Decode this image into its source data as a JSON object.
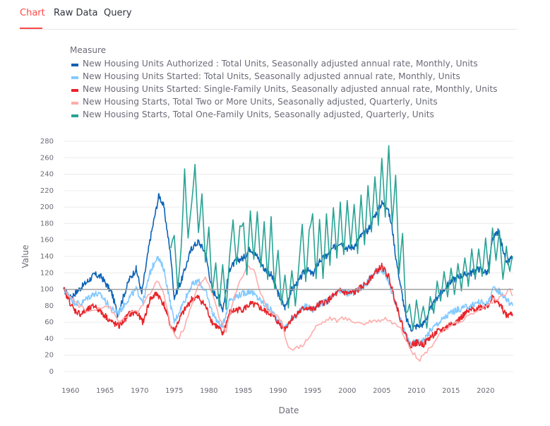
{
  "tabs": [
    {
      "label": "Chart",
      "active": true
    },
    {
      "label": "Raw Data",
      "active": false
    },
    {
      "label": "Query",
      "active": false
    }
  ],
  "colors": {
    "accent": "#ff4b4b",
    "reference_line": "#a0a0a0",
    "grid": "#ececec"
  },
  "chart_data": {
    "type": "line",
    "xlabel": "Date",
    "ylabel": "Value",
    "xlim": [
      1959,
      2024
    ],
    "ylim": [
      0,
      280
    ],
    "xticks": [
      1960,
      1965,
      1970,
      1975,
      1980,
      1985,
      1990,
      1995,
      2000,
      2005,
      2010,
      2015,
      2020
    ],
    "yticks": [
      0,
      20,
      40,
      60,
      80,
      100,
      120,
      140,
      160,
      180,
      200,
      220,
      240,
      260,
      280
    ],
    "reference_line": 100,
    "legend": {
      "title": "Measure",
      "placement": "top-left"
    },
    "series": [
      {
        "name": "New Housing Units Authorized : Total Units, Seasonally adjusted annual rate, Monthly, Units",
        "color": "#0b62b8",
        "frequency": "monthly",
        "x": [
          1959.0,
          1960.0,
          1961.0,
          1962.5,
          1963.5,
          1964.5,
          1966.0,
          1966.8,
          1968.5,
          1969.5,
          1970.3,
          1971.5,
          1972.8,
          1973.5,
          1974.5,
          1975.0,
          1976.0,
          1977.5,
          1978.5,
          1979.5,
          1980.5,
          1981.5,
          1982.0,
          1983.0,
          1984.0,
          1985.0,
          1986.0,
          1987.0,
          1988.0,
          1989.0,
          1990.0,
          1991.0,
          1992.0,
          1993.0,
          1994.0,
          1995.0,
          1996.0,
          1997.0,
          1998.0,
          1999.0,
          2000.0,
          2001.0,
          2002.0,
          2003.0,
          2004.0,
          2005.0,
          2005.8,
          2006.5,
          2007.0,
          2008.0,
          2008.5,
          2009.2,
          2010.0,
          2011.0,
          2012.0,
          2013.0,
          2014.0,
          2015.0,
          2016.0,
          2017.0,
          2018.0,
          2019.0,
          2020.3,
          2021.0,
          2021.8,
          2022.5,
          2023.0,
          2023.9
        ],
        "y": [
          100,
          90,
          98,
          110,
          118,
          115,
          95,
          70,
          112,
          125,
          95,
          160,
          215,
          200,
          140,
          90,
          110,
          150,
          158,
          145,
          98,
          90,
          75,
          125,
          135,
          138,
          150,
          140,
          125,
          118,
          95,
          78,
          100,
          110,
          125,
          118,
          135,
          140,
          150,
          158,
          150,
          152,
          165,
          172,
          190,
          205,
          200,
          175,
          140,
          90,
          65,
          52,
          55,
          58,
          75,
          90,
          100,
          110,
          115,
          118,
          120,
          125,
          120,
          160,
          170,
          150,
          130,
          140
        ]
      },
      {
        "name": "New Housing Units Started: Total Units, Seasonally adjusted annual rate, Monthly, Units",
        "color": "#83c9ff",
        "frequency": "monthly",
        "x": [
          1959.0,
          1960.5,
          1961.5,
          1962.5,
          1963.5,
          1964.5,
          1966.0,
          1967.0,
          1968.5,
          1969.5,
          1970.5,
          1971.5,
          1972.5,
          1973.5,
          1974.5,
          1975.0,
          1976.0,
          1977.5,
          1978.5,
          1979.5,
          1980.5,
          1981.5,
          1982.0,
          1983.0,
          1984.0,
          1985.0,
          1986.0,
          1987.0,
          1988.0,
          1989.0,
          1990.0,
          1991.0,
          1992.0,
          1993.0,
          1994.0,
          1995.0,
          1996.0,
          1997.0,
          1998.0,
          1999.0,
          2000.0,
          2001.0,
          2002.0,
          2003.0,
          2004.0,
          2005.0,
          2006.0,
          2007.0,
          2008.0,
          2009.0,
          2010.0,
          2011.0,
          2012.0,
          2013.0,
          2014.0,
          2015.0,
          2016.0,
          2017.0,
          2018.0,
          2019.0,
          2020.3,
          2021.0,
          2022.0,
          2023.0,
          2023.9
        ],
        "y": [
          100,
          85,
          82,
          90,
          95,
          92,
          75,
          72,
          90,
          100,
          85,
          120,
          140,
          125,
          80,
          60,
          78,
          105,
          110,
          98,
          72,
          58,
          55,
          88,
          92,
          95,
          98,
          90,
          82,
          75,
          62,
          52,
          65,
          72,
          80,
          75,
          82,
          85,
          92,
          98,
          95,
          96,
          102,
          110,
          120,
          125,
          110,
          82,
          55,
          35,
          35,
          38,
          50,
          58,
          65,
          72,
          75,
          78,
          80,
          85,
          82,
          100,
          98,
          88,
          80
        ]
      },
      {
        "name": "New Housing Units Started: Single-Family Units, Seasonally adjusted annual rate, Monthly, Units",
        "color": "#e8242a",
        "frequency": "monthly",
        "x": [
          1959.0,
          1960.5,
          1961.5,
          1962.5,
          1963.5,
          1964.5,
          1966.0,
          1967.0,
          1968.5,
          1969.5,
          1970.5,
          1971.5,
          1972.5,
          1973.5,
          1974.5,
          1975.0,
          1976.0,
          1977.5,
          1978.5,
          1979.5,
          1980.5,
          1981.5,
          1982.0,
          1983.0,
          1984.0,
          1985.0,
          1986.0,
          1987.0,
          1988.0,
          1989.0,
          1990.0,
          1991.0,
          1992.0,
          1993.0,
          1994.0,
          1995.0,
          1996.0,
          1997.0,
          1998.0,
          1999.0,
          2000.0,
          2001.0,
          2002.0,
          2003.0,
          2004.0,
          2005.0,
          2006.0,
          2007.0,
          2008.0,
          2009.0,
          2010.0,
          2011.0,
          2012.0,
          2013.0,
          2014.0,
          2015.0,
          2016.0,
          2017.0,
          2018.0,
          2019.0,
          2020.3,
          2021.0,
          2022.0,
          2023.0,
          2023.9
        ],
        "y": [
          100,
          75,
          70,
          75,
          80,
          72,
          60,
          55,
          70,
          72,
          60,
          88,
          95,
          82,
          55,
          50,
          68,
          88,
          90,
          80,
          60,
          52,
          45,
          72,
          75,
          76,
          82,
          80,
          74,
          70,
          60,
          52,
          65,
          72,
          78,
          75,
          82,
          85,
          92,
          98,
          95,
          96,
          102,
          110,
          120,
          128,
          115,
          85,
          55,
          32,
          35,
          33,
          42,
          48,
          52,
          58,
          62,
          70,
          75,
          78,
          80,
          90,
          82,
          68,
          70
        ]
      },
      {
        "name": "New Housing Starts, Total Two or More Units, Seasonally adjusted, Quarterly, Units",
        "color": "#ffabab",
        "frequency": "quarterly",
        "x": [
          1959.0,
          1961.0,
          1962.5,
          1964.0,
          1965.5,
          1967.0,
          1968.5,
          1970.0,
          1971.5,
          1972.5,
          1973.5,
          1974.5,
          1975.5,
          1976.5,
          1977.5,
          1978.5,
          1979.5,
          1980.5,
          1981.5,
          1982.5,
          1983.5,
          1984.5,
          1985.5,
          1986.5,
          1987.5,
          1988.5,
          1989.5,
          1990.5,
          1991.5,
          1992.5,
          1993.5,
          1994.5,
          1995.5,
          1996.5,
          1997.5,
          1998.5,
          1999.5,
          2000.5,
          2001.5,
          2002.5,
          2003.5,
          2004.5,
          2005.5,
          2006.5,
          2007.5,
          2008.5,
          2009.5,
          2010.5,
          2011.5,
          2012.5,
          2013.5,
          2014.5,
          2015.5,
          2016.5,
          2017.5,
          2018.5,
          2019.5,
          2020.5,
          2021.5,
          2022.5,
          2023.5,
          2023.9
        ],
        "y": [
          100,
          82,
          72,
          78,
          80,
          60,
          70,
          75,
          95,
          110,
          95,
          55,
          38,
          55,
          80,
          105,
          115,
          95,
          65,
          50,
          85,
          110,
          128,
          125,
          95,
          75,
          70,
          60,
          30,
          28,
          32,
          42,
          55,
          60,
          65,
          62,
          65,
          62,
          60,
          58,
          62,
          62,
          65,
          60,
          55,
          40,
          22,
          15,
          25,
          35,
          48,
          52,
          58,
          62,
          68,
          72,
          78,
          82,
          88,
          92,
          100,
          92
        ]
      },
      {
        "name": "New Housing Starts, Total One-Family Units, Seasonally adjusted, Quarterly, Units",
        "color": "#29a394",
        "frequency": "quarterly",
        "x": [
          1974.5,
          1975.0,
          1975.5,
          1976.0,
          1976.5,
          1977.0,
          1977.5,
          1978.0,
          1978.5,
          1979.0,
          1979.5,
          1980.0,
          1980.5,
          1981.0,
          1981.5,
          1982.0,
          1982.5,
          1983.0,
          1983.5,
          1984.0,
          1984.5,
          1985.0,
          1985.5,
          1986.0,
          1986.5,
          1987.0,
          1987.5,
          1988.0,
          1988.5,
          1989.0,
          1989.5,
          1990.0,
          1990.5,
          1991.0,
          1991.5,
          1992.0,
          1992.5,
          1993.0,
          1993.5,
          1994.0,
          1994.5,
          1995.0,
          1995.5,
          1996.0,
          1996.5,
          1997.0,
          1997.5,
          1998.0,
          1998.5,
          1999.0,
          1999.5,
          2000.0,
          2000.5,
          2001.0,
          2001.5,
          2002.0,
          2002.5,
          2003.0,
          2003.5,
          2004.0,
          2004.5,
          2005.0,
          2005.5,
          2006.0,
          2006.5,
          2007.0,
          2007.5,
          2008.0,
          2008.5,
          2009.0,
          2009.5,
          2010.0,
          2010.5,
          2011.0,
          2011.5,
          2012.0,
          2012.5,
          2013.0,
          2013.5,
          2014.0,
          2014.5,
          2015.0,
          2015.5,
          2016.0,
          2016.5,
          2017.0,
          2017.5,
          2018.0,
          2018.5,
          2019.0,
          2019.5,
          2020.0,
          2020.5,
          2021.0,
          2021.5,
          2022.0,
          2022.5,
          2023.0,
          2023.5,
          2023.9
        ],
        "y": [
          150,
          165,
          100,
          150,
          245,
          160,
          205,
          250,
          170,
          215,
          135,
          175,
          95,
          130,
          80,
          130,
          75,
          140,
          185,
          130,
          175,
          180,
          120,
          195,
          135,
          195,
          125,
          180,
          110,
          190,
          100,
          150,
          80,
          115,
          75,
          125,
          80,
          130,
          180,
          110,
          170,
          190,
          115,
          185,
          115,
          190,
          130,
          200,
          140,
          205,
          140,
          210,
          150,
          205,
          145,
          215,
          155,
          225,
          170,
          235,
          180,
          260,
          190,
          275,
          180,
          240,
          120,
          170,
          70,
          80,
          50,
          85,
          55,
          80,
          55,
          90,
          70,
          110,
          85,
          120,
          90,
          125,
          95,
          130,
          100,
          140,
          105,
          150,
          110,
          150,
          115,
          160,
          120,
          175,
          135,
          170,
          110,
          150,
          120,
          140
        ]
      }
    ]
  }
}
